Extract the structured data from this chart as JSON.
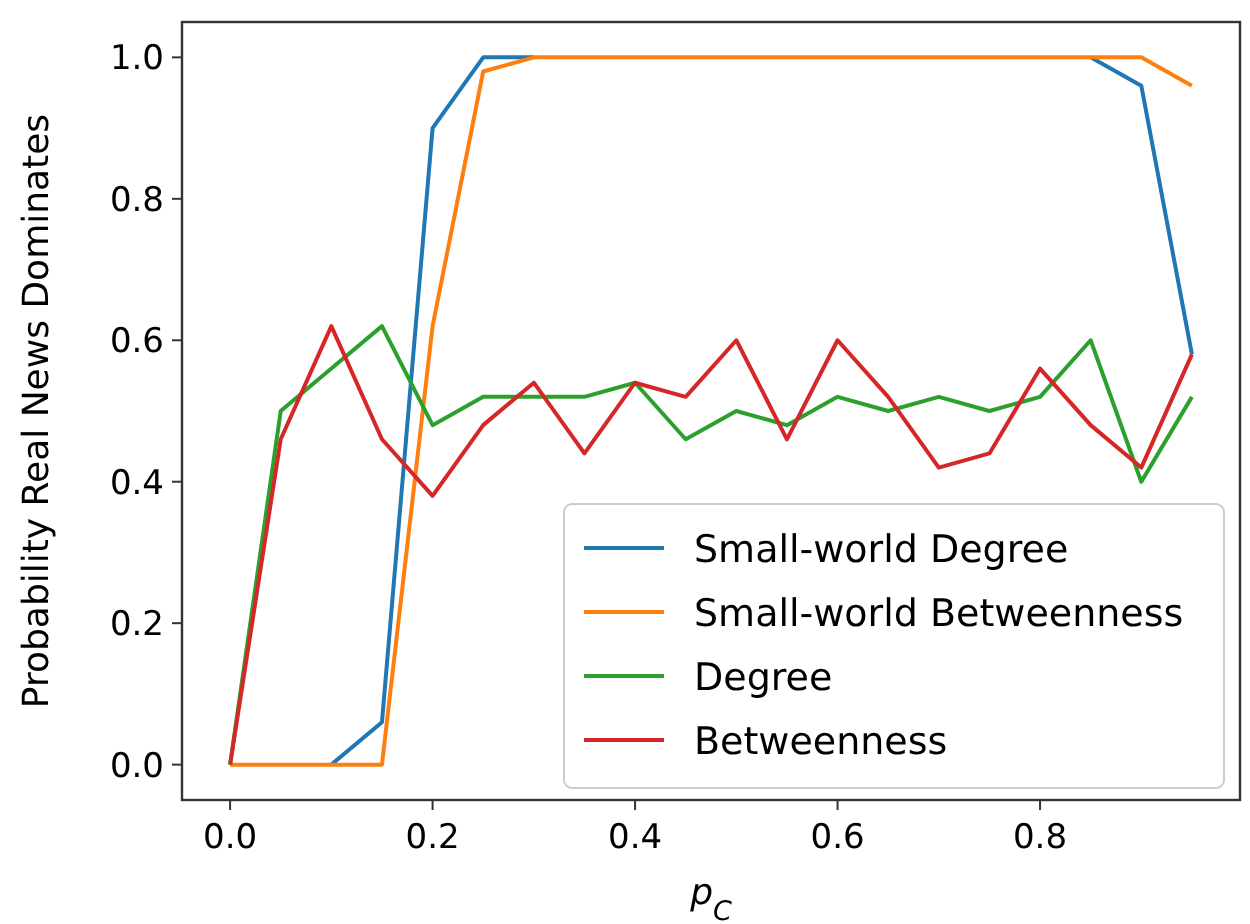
{
  "chart_data": {
    "type": "line",
    "xlabel": "p$_{C}$",
    "ylabel": "Probability Real News Dominates",
    "x": [
      0,
      0.05,
      0.1,
      0.15,
      0.2,
      0.25,
      0.3,
      0.35,
      0.4,
      0.45,
      0.5,
      0.55,
      0.6,
      0.65,
      0.7,
      0.75,
      0.8,
      0.85,
      0.9,
      0.95
    ],
    "series": [
      {
        "name": "Small-world Degree",
        "color": "#1f77b4",
        "values": [
          null,
          null,
          0,
          0.06,
          0.9,
          1,
          1,
          null,
          null,
          null,
          null,
          null,
          null,
          null,
          null,
          null,
          null,
          1,
          0.96,
          0.58
        ]
      },
      {
        "name": "Small-world Betweenness",
        "color": "#ff7f0e",
        "values": [
          0,
          0,
          0,
          0,
          0.62,
          0.98,
          1,
          1,
          1,
          1,
          1,
          1,
          1,
          1,
          1,
          1,
          1,
          1,
          1,
          0.96
        ]
      },
      {
        "name": "Degree",
        "color": "#2ca02c",
        "values": [
          0,
          0.5,
          0.56,
          0.62,
          0.48,
          0.52,
          0.52,
          0.52,
          0.54,
          0.46,
          0.5,
          0.48,
          0.52,
          0.5,
          0.52,
          0.5,
          0.52,
          0.6,
          0.4,
          0.52
        ]
      },
      {
        "name": "Betweenness",
        "color": "#d62728",
        "values": [
          0,
          0.46,
          0.62,
          0.46,
          0.38,
          0.48,
          0.54,
          0.44,
          0.54,
          0.52,
          0.6,
          0.46,
          0.6,
          0.52,
          0.42,
          0.44,
          0.56,
          0.48,
          0.42,
          0.58
        ]
      }
    ],
    "xlim": [
      -0.0475,
      0.9975
    ],
    "ylim": [
      -0.05,
      1.05
    ],
    "xticks": [
      {
        "value": 0,
        "label": "0.0"
      },
      {
        "value": 0.2,
        "label": "0.2"
      },
      {
        "value": 0.4,
        "label": "0.4"
      },
      {
        "value": 0.6,
        "label": "0.6"
      },
      {
        "value": 0.8,
        "label": "0.8"
      }
    ],
    "yticks": [
      {
        "value": 0,
        "label": "0.0"
      },
      {
        "value": 0.2,
        "label": "0.2"
      },
      {
        "value": 0.4,
        "label": "0.4"
      },
      {
        "value": 0.6,
        "label": "0.6"
      },
      {
        "value": 0.8,
        "label": "0.8"
      },
      {
        "value": 1,
        "label": "1.0"
      }
    ],
    "legend": "bottom right",
    "grid": false
  }
}
